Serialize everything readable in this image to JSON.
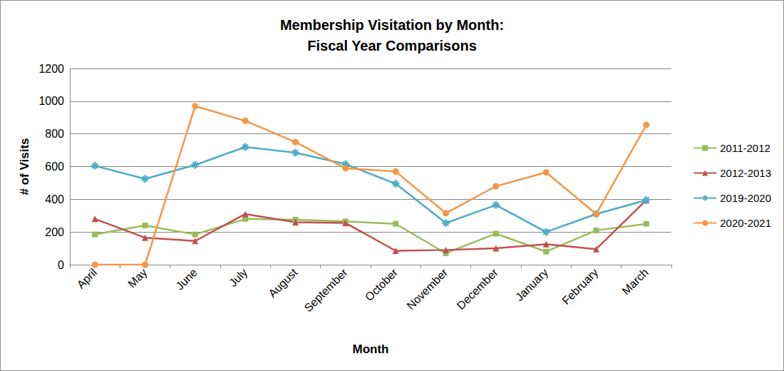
{
  "chart_data": {
    "type": "line",
    "title": "Membership Visitation by Month:\nFiscal Year Comparisons",
    "x_label": "Month",
    "y_label": "# of Visits",
    "categories": [
      "April",
      "May",
      "June",
      "July",
      "August",
      "September",
      "October",
      "November",
      "December",
      "January",
      "February",
      "March"
    ],
    "series": [
      {
        "name": "2011-2012",
        "color": "#9BBB59",
        "marker": "square",
        "line_style": "solid",
        "values": [
          185,
          240,
          185,
          280,
          275,
          265,
          250,
          70,
          190,
          80,
          210,
          250
        ]
      },
      {
        "name": "2012-2013",
        "color": "#C0504D",
        "marker": "triangle",
        "line_style": "solid",
        "values": [
          280,
          165,
          145,
          310,
          260,
          255,
          85,
          90,
          100,
          125,
          95,
          395
        ]
      },
      {
        "name": "2019-2020",
        "color": "#4BACC6",
        "marker": "asterisk",
        "line_style": "solid",
        "values": [
          605,
          525,
          610,
          720,
          685,
          615,
          495,
          255,
          365,
          200,
          310,
          395
        ]
      },
      {
        "name": "2020-2021",
        "color": "#F79646",
        "marker": "circle",
        "line_style": "solid",
        "values": [
          0,
          0,
          970,
          880,
          750,
          590,
          570,
          315,
          480,
          565,
          310,
          855
        ]
      }
    ],
    "ylim": [
      0,
      1200
    ],
    "yticks": [
      0,
      200,
      400,
      600,
      800,
      1000,
      1200
    ],
    "grid": true,
    "legend": "right"
  }
}
